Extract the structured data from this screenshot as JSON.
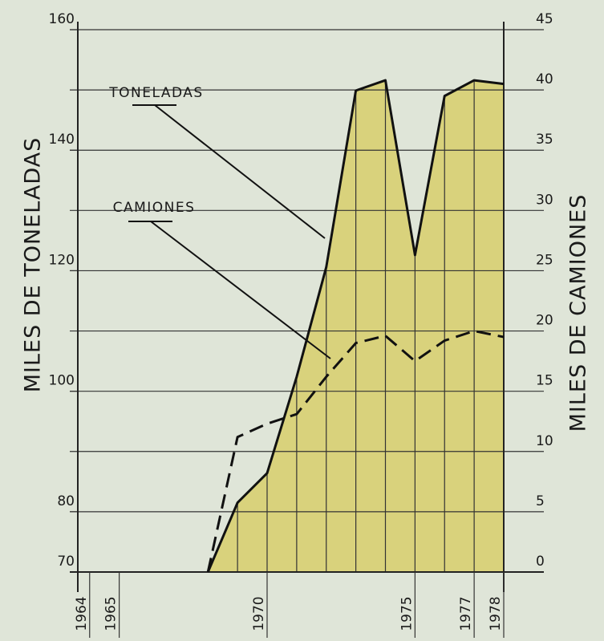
{
  "chart_data": {
    "type": "line",
    "ylabel": "MILES DE TONELADAS",
    "y2label": "MILES DE CAMIONES",
    "x": [
      1968,
      1969,
      1970,
      1971,
      1972,
      1973,
      1974,
      1975,
      1976,
      1977,
      1978
    ],
    "series": [
      {
        "name": "TONELADAS",
        "color": "#111111",
        "fill": "#d9d27c",
        "area": true,
        "values": [
          70,
          81.5,
          86.4,
          102.4,
          120.6,
          149.9,
          151.6,
          122.6,
          149,
          151.6,
          151
        ]
      },
      {
        "name": "CAMIONES",
        "color": "#111111",
        "axis": "y2",
        "dashed": true,
        "values": [
          0,
          11.2,
          12.3,
          13.1,
          16.2,
          19,
          19.6,
          17.5,
          19.2,
          20,
          19.5
        ]
      }
    ],
    "xlim": [
      1963.6,
      1978
    ],
    "xticks": [
      1964,
      1965,
      1970,
      1975,
      1977,
      1978
    ],
    "ylim": [
      70,
      160
    ],
    "yticks": [
      70,
      80,
      100,
      120,
      140,
      160
    ],
    "y2lim": [
      0,
      45
    ],
    "y2ticks": [
      0,
      5,
      10,
      15,
      20,
      25,
      30,
      35,
      40,
      45
    ],
    "grid": true
  }
}
